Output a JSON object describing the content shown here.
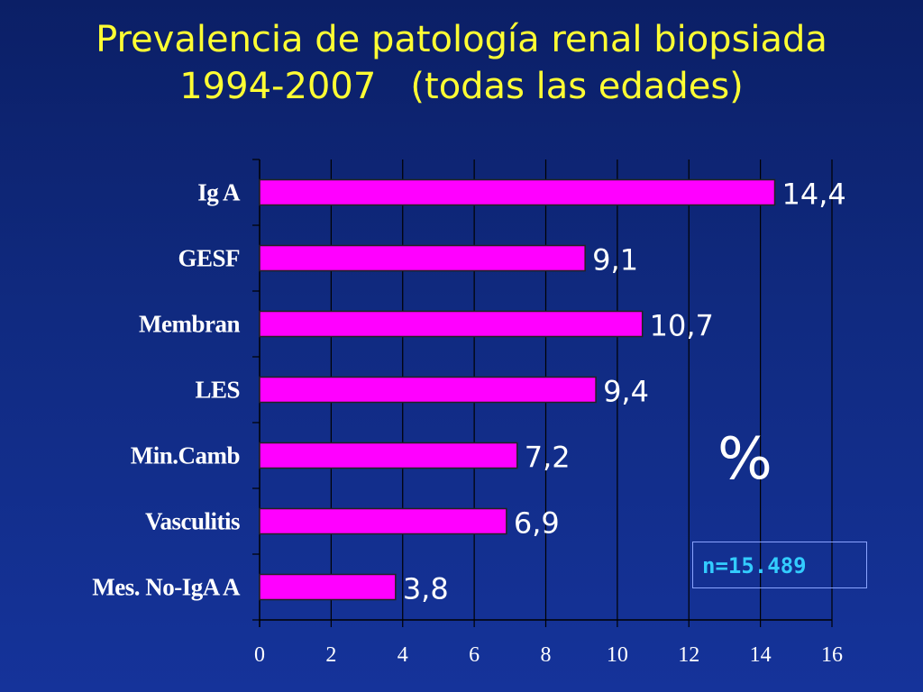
{
  "slide": {
    "title_line1": "Prevalencia de patología renal biopsiada",
    "title_line2": "1994-2007   (todas las edades)",
    "unit_label": "%",
    "sample_label": "n=15.489"
  },
  "colors": {
    "title": "#ffff33",
    "bar_fill": "#ff00ff",
    "bar_stroke": "#222222",
    "axis_text": "#ffffff",
    "n_text": "#33ccff"
  },
  "chart_data": {
    "type": "bar",
    "orientation": "horizontal",
    "categories": [
      "Ig A",
      "GESF",
      "Membran",
      "LES",
      "Min.Camb",
      "Vasculitis",
      "Mes. No-IgA A"
    ],
    "values": [
      14.4,
      9.1,
      10.7,
      9.4,
      7.2,
      6.9,
      3.8
    ],
    "value_labels": [
      "14,4",
      "9,1",
      "10,7",
      "9,4",
      "7,2",
      "6,9",
      "3,8"
    ],
    "xlim": [
      0,
      16
    ],
    "xticks": [
      0,
      2,
      4,
      6,
      8,
      10,
      12,
      14,
      16
    ],
    "grid": "vertical"
  }
}
